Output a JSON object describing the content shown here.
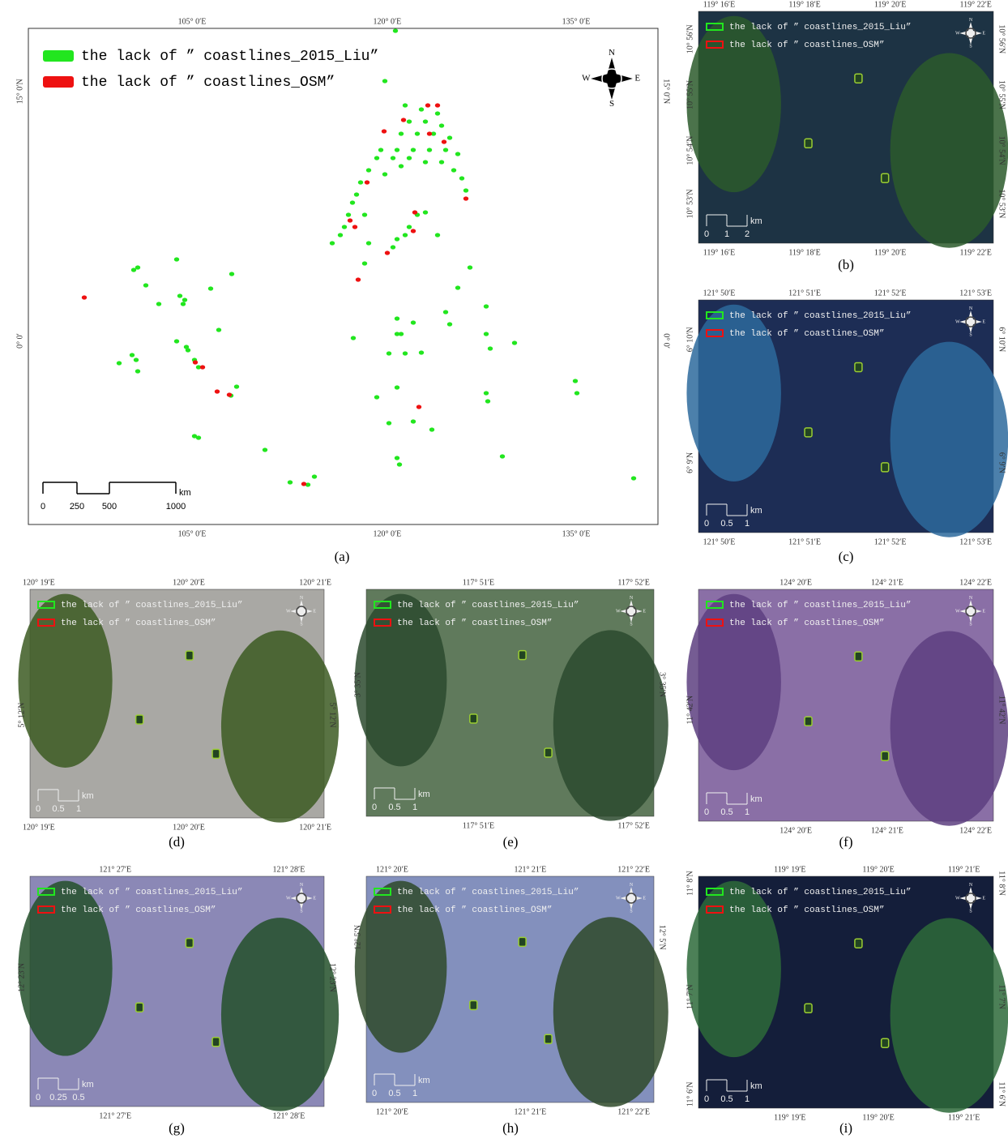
{
  "panels": [
    {
      "caption": "(a)",
      "top_labels": [
        "105° 0′E",
        "120° 0′E",
        "135° 0′E"
      ],
      "left_labels": [
        "15° 0′N",
        "0° 0′"
      ],
      "legend": [
        "the lack of ” coastlines_2015_Liu”",
        "the lack of ” coastlines_OSM”"
      ],
      "scale": [
        "0",
        "250",
        "500",
        "1000"
      ],
      "scale_unit": "km",
      "compass": [
        "N",
        "E",
        "S",
        "W"
      ]
    },
    {
      "caption": "(b)",
      "top_labels": [
        "119° 16′E",
        "119° 18′E",
        "119° 20′E",
        "119° 22′E"
      ],
      "left_labels": [
        "10° 56′N",
        "10° 55′N",
        "10° 54′N",
        "10° 53′N"
      ],
      "legend": [
        "the lack of ” coastlines_2015_Liu”",
        "the lack of ” coastlines_OSM”"
      ],
      "scale": [
        "0",
        "1",
        "2"
      ],
      "scale_unit": "km"
    },
    {
      "caption": "(c)",
      "top_labels": [
        "121° 50′E",
        "121° 51′E",
        "121° 52′E",
        "121° 53′E"
      ],
      "left_labels": [
        "6° 10′N",
        "6° 9′N"
      ],
      "legend": [
        "the lack of ” coastlines_2015_Liu”",
        "the lack of ” coastlines_OSM”"
      ],
      "scale": [
        "0",
        "0.5",
        "1"
      ],
      "scale_unit": "km"
    },
    {
      "caption": "(d)",
      "top_labels": [
        "120° 19′E",
        "120° 20′E",
        "120° 21′E"
      ],
      "left_labels": [
        "5° 12′N"
      ],
      "legend": [
        "the lack of ” coastlines_2015_Liu”",
        "the lack of ” coastlines_OSM”"
      ],
      "scale": [
        "0",
        "0.5",
        "1"
      ],
      "scale_unit": "km"
    },
    {
      "caption": "(e)",
      "top_labels": [
        "117° 51′E",
        "117° 52′E"
      ],
      "left_labels": [
        "3° 35′N"
      ],
      "legend": [
        "the lack of ” coastlines_2015_Liu”",
        "the lack of ” coastlines_OSM”"
      ],
      "scale": [
        "0",
        "0.5",
        "1"
      ],
      "scale_unit": "km"
    },
    {
      "caption": "(f)",
      "top_labels": [
        "124° 20′E",
        "124° 21′E",
        "124° 22′E"
      ],
      "left_labels": [
        "11° 42′N"
      ],
      "legend": [
        "the lack of ” coastlines_2015_Liu”",
        "the lack of ” coastlines_OSM”"
      ],
      "scale": [
        "0",
        "0.5",
        "1"
      ],
      "scale_unit": "km"
    },
    {
      "caption": "(g)",
      "top_labels": [
        "121° 27′E",
        "121° 28′E"
      ],
      "left_labels": [
        "12° 23′N"
      ],
      "legend": [
        "the lack of ” coastlines_2015_Liu”",
        "the lack of ” coastlines_OSM”"
      ],
      "scale": [
        "0",
        "0.25",
        "0.5"
      ],
      "scale_unit": "km"
    },
    {
      "caption": "(h)",
      "top_labels": [
        "121° 20′E",
        "121° 21′E",
        "121° 22′E"
      ],
      "left_labels": [
        "12° 5′N"
      ],
      "legend": [
        "the lack of ” coastlines_2015_Liu”",
        "the lack of ” coastlines_OSM”"
      ],
      "scale": [
        "0",
        "0.5",
        "1"
      ],
      "scale_unit": "km"
    },
    {
      "caption": "(i)",
      "top_labels": [
        "119° 19′E",
        "119° 20′E",
        "119° 21′E"
      ],
      "left_labels": [
        "11° 8′N",
        "11° 7′N",
        "11° 6′N"
      ],
      "legend": [
        "the lack of ” coastlines_2015_Liu”",
        "the lack of ” coastlines_OSM”"
      ],
      "scale": [
        "0",
        "0.5",
        "1"
      ],
      "scale_unit": "km"
    }
  ]
}
